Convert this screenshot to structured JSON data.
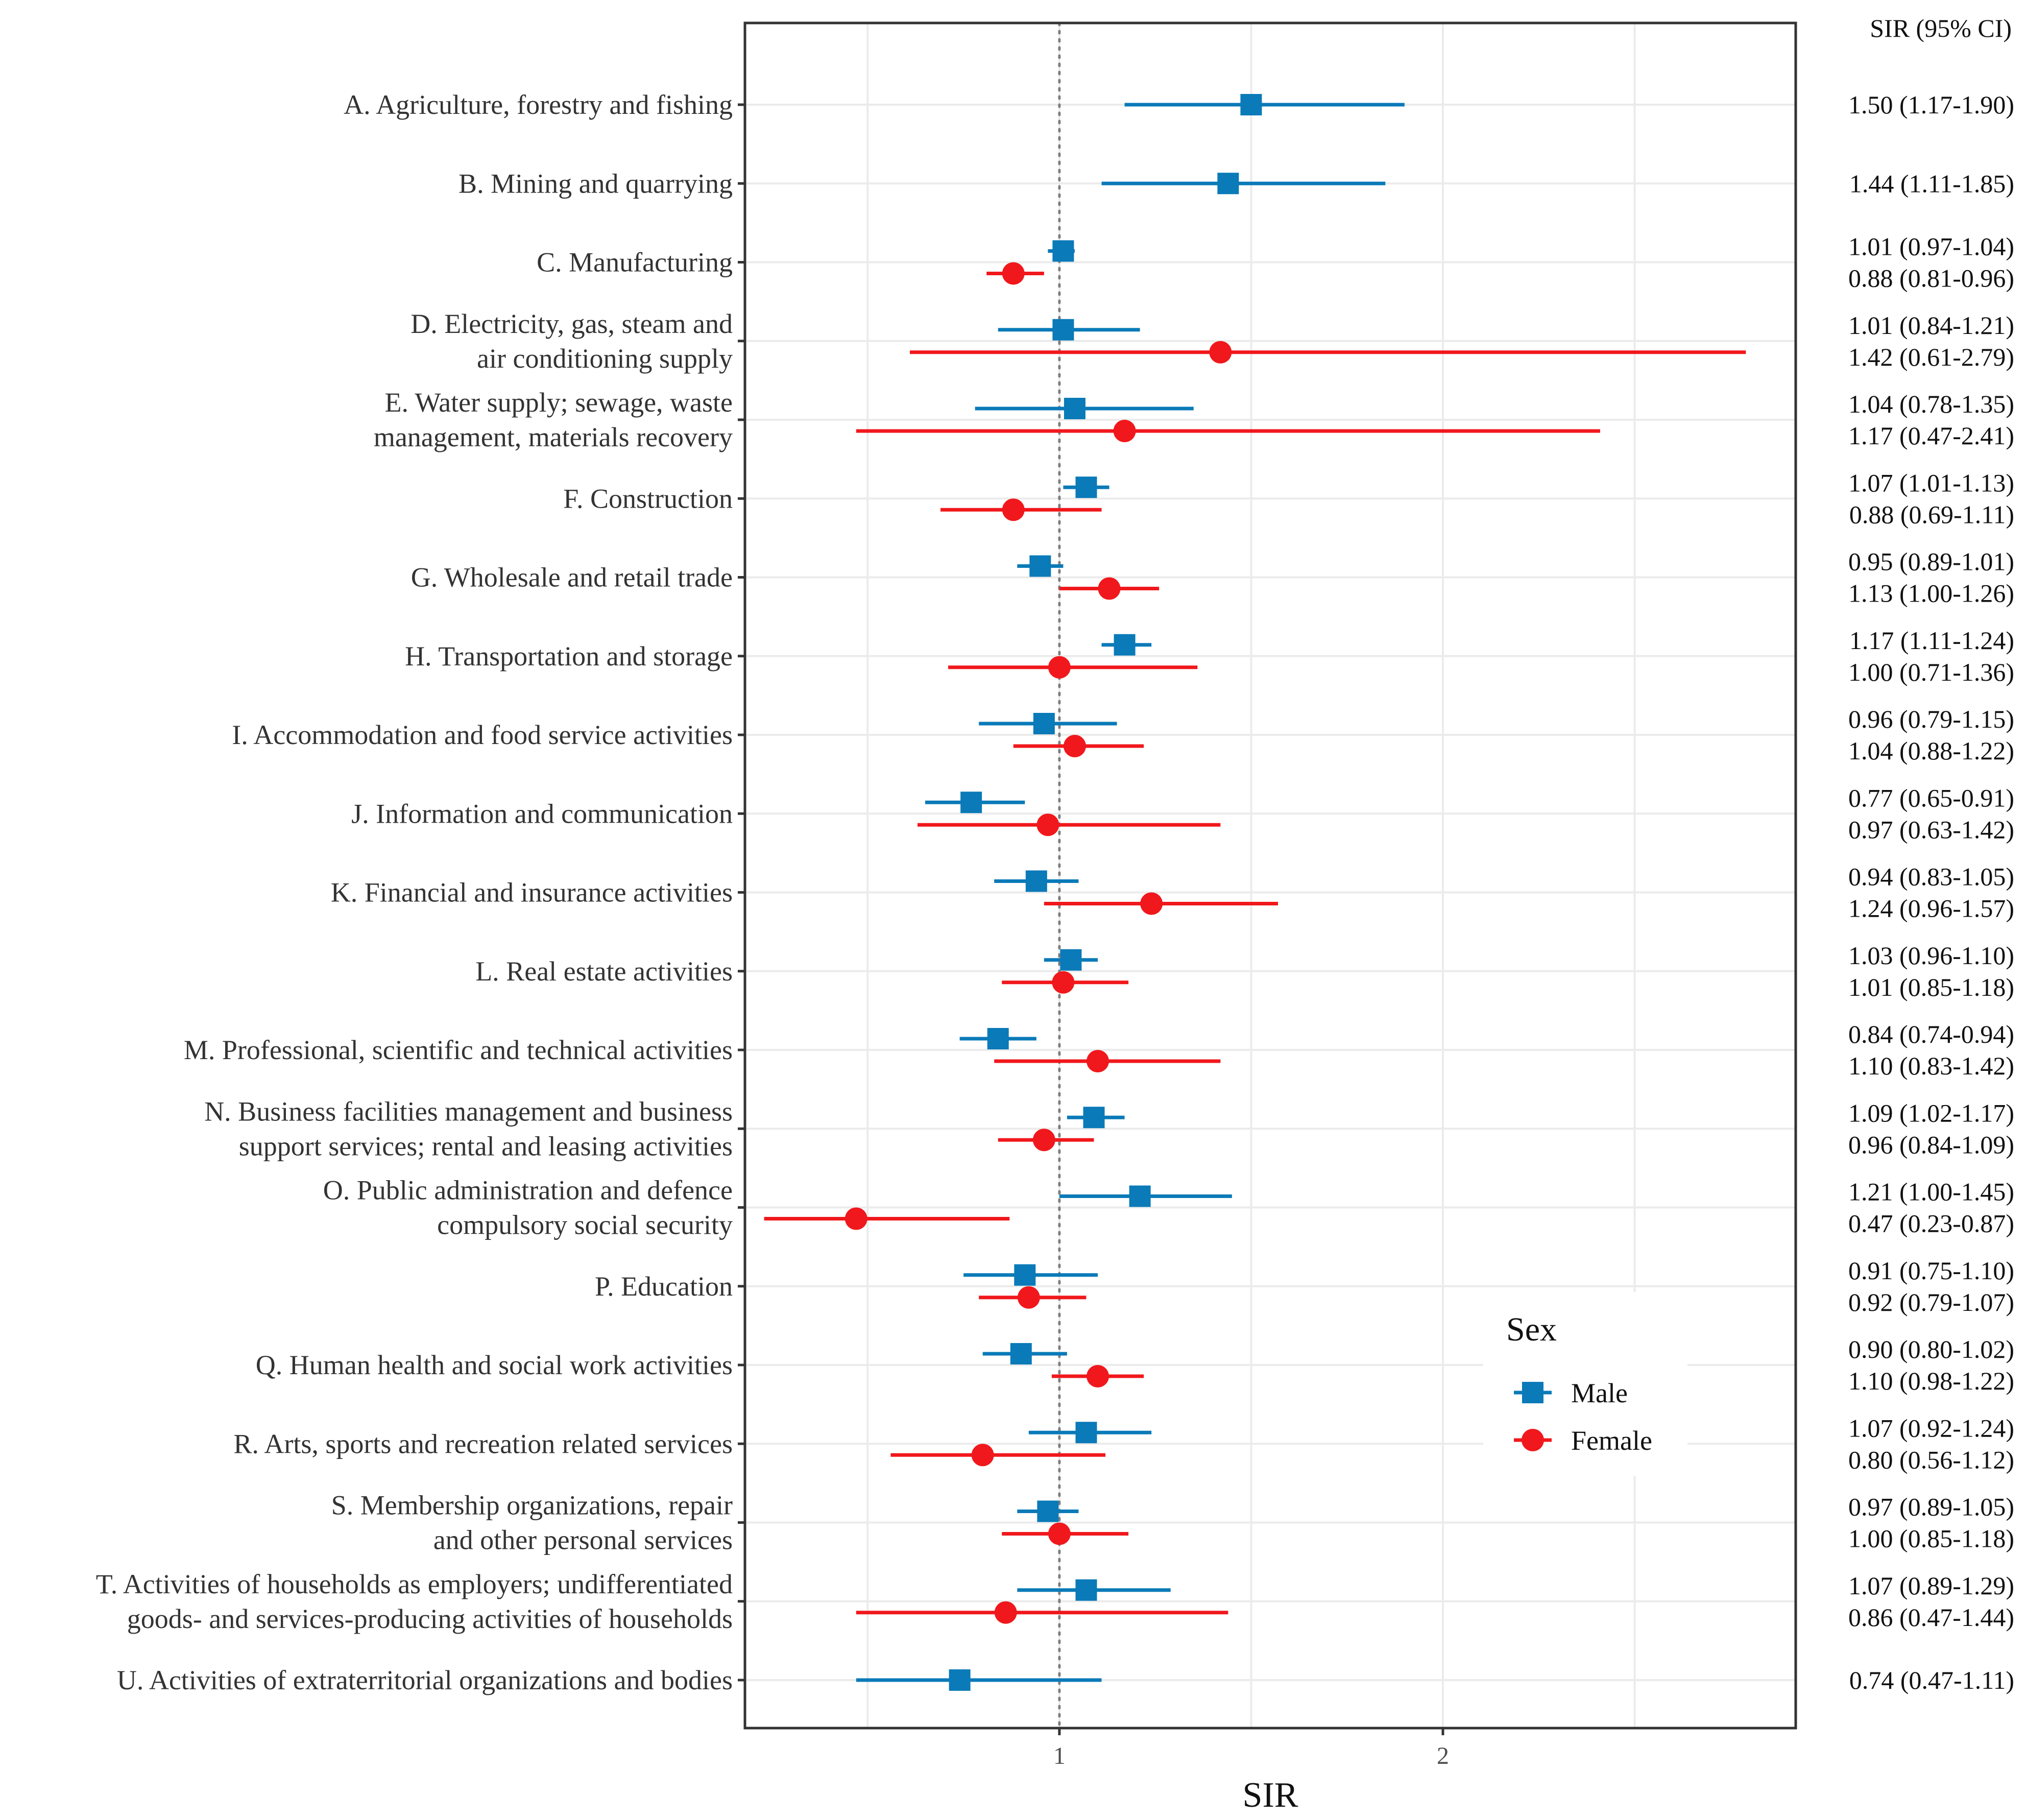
{
  "chart_data": {
    "type": "forest",
    "xlabel": "SIR",
    "value_column_header": "SIR (95% CI)",
    "xlim": [
      0.18,
      2.92
    ],
    "xticks": [
      1,
      2
    ],
    "minor_gridlines": [
      0.5,
      1.5,
      2.5
    ],
    "reference_line": 1,
    "legend": {
      "title": "Sex",
      "position": "right",
      "entries": [
        {
          "name": "Male",
          "color": "#0a7ab8",
          "shape": "square"
        },
        {
          "name": "Female",
          "color": "#f0181c",
          "shape": "circle"
        }
      ]
    },
    "series_colors": {
      "Male": "#0a7ab8",
      "Female": "#f0181c"
    },
    "categories": [
      {
        "label": [
          "A. Agriculture, forestry and fishing"
        ],
        "male": {
          "sir": 1.5,
          "lo": 1.17,
          "hi": 1.9,
          "text": "1.50 (1.17-1.90)"
        },
        "female": null
      },
      {
        "label": [
          "B. Mining and quarrying"
        ],
        "male": {
          "sir": 1.44,
          "lo": 1.11,
          "hi": 1.85,
          "text": "1.44 (1.11-1.85)"
        },
        "female": null
      },
      {
        "label": [
          "C. Manufacturing"
        ],
        "male": {
          "sir": 1.01,
          "lo": 0.97,
          "hi": 1.04,
          "text": "1.01 (0.97-1.04)"
        },
        "female": {
          "sir": 0.88,
          "lo": 0.81,
          "hi": 0.96,
          "text": "0.88 (0.81-0.96)"
        }
      },
      {
        "label": [
          "D. Electricity, gas, steam and",
          "air conditioning supply"
        ],
        "male": {
          "sir": 1.01,
          "lo": 0.84,
          "hi": 1.21,
          "text": "1.01 (0.84-1.21)"
        },
        "female": {
          "sir": 1.42,
          "lo": 0.61,
          "hi": 2.79,
          "text": "1.42 (0.61-2.79)"
        }
      },
      {
        "label": [
          "E. Water supply; sewage, waste",
          "management, materials recovery"
        ],
        "male": {
          "sir": 1.04,
          "lo": 0.78,
          "hi": 1.35,
          "text": "1.04 (0.78-1.35)"
        },
        "female": {
          "sir": 1.17,
          "lo": 0.47,
          "hi": 2.41,
          "text": "1.17 (0.47-2.41)"
        }
      },
      {
        "label": [
          "F. Construction"
        ],
        "male": {
          "sir": 1.07,
          "lo": 1.01,
          "hi": 1.13,
          "text": "1.07 (1.01-1.13)"
        },
        "female": {
          "sir": 0.88,
          "lo": 0.69,
          "hi": 1.11,
          "text": "0.88 (0.69-1.11)"
        }
      },
      {
        "label": [
          "G. Wholesale and retail trade"
        ],
        "male": {
          "sir": 0.95,
          "lo": 0.89,
          "hi": 1.01,
          "text": "0.95 (0.89-1.01)"
        },
        "female": {
          "sir": 1.13,
          "lo": 1.0,
          "hi": 1.26,
          "text": "1.13 (1.00-1.26)"
        }
      },
      {
        "label": [
          "H. Transportation and storage"
        ],
        "male": {
          "sir": 1.17,
          "lo": 1.11,
          "hi": 1.24,
          "text": "1.17 (1.11-1.24)"
        },
        "female": {
          "sir": 1.0,
          "lo": 0.71,
          "hi": 1.36,
          "text": "1.00 (0.71-1.36)"
        }
      },
      {
        "label": [
          "I. Accommodation and food service activities"
        ],
        "male": {
          "sir": 0.96,
          "lo": 0.79,
          "hi": 1.15,
          "text": "0.96 (0.79-1.15)"
        },
        "female": {
          "sir": 1.04,
          "lo": 0.88,
          "hi": 1.22,
          "text": "1.04 (0.88-1.22)"
        }
      },
      {
        "label": [
          "J. Information and communication"
        ],
        "male": {
          "sir": 0.77,
          "lo": 0.65,
          "hi": 0.91,
          "text": "0.77 (0.65-0.91)"
        },
        "female": {
          "sir": 0.97,
          "lo": 0.63,
          "hi": 1.42,
          "text": "0.97 (0.63-1.42)"
        }
      },
      {
        "label": [
          "K. Financial and insurance activities"
        ],
        "male": {
          "sir": 0.94,
          "lo": 0.83,
          "hi": 1.05,
          "text": "0.94 (0.83-1.05)"
        },
        "female": {
          "sir": 1.24,
          "lo": 0.96,
          "hi": 1.57,
          "text": "1.24 (0.96-1.57)"
        }
      },
      {
        "label": [
          "L. Real estate activities"
        ],
        "male": {
          "sir": 1.03,
          "lo": 0.96,
          "hi": 1.1,
          "text": "1.03 (0.96-1.10)"
        },
        "female": {
          "sir": 1.01,
          "lo": 0.85,
          "hi": 1.18,
          "text": "1.01 (0.85-1.18)"
        }
      },
      {
        "label": [
          "M. Professional, scientific and technical activities"
        ],
        "male": {
          "sir": 0.84,
          "lo": 0.74,
          "hi": 0.94,
          "text": "0.84 (0.74-0.94)"
        },
        "female": {
          "sir": 1.1,
          "lo": 0.83,
          "hi": 1.42,
          "text": "1.10 (0.83-1.42)"
        }
      },
      {
        "label": [
          "N. Business facilities management and business",
          "support services; rental and leasing activities"
        ],
        "male": {
          "sir": 1.09,
          "lo": 1.02,
          "hi": 1.17,
          "text": "1.09 (1.02-1.17)"
        },
        "female": {
          "sir": 0.96,
          "lo": 0.84,
          "hi": 1.09,
          "text": "0.96 (0.84-1.09)"
        }
      },
      {
        "label": [
          "O. Public administration and defence",
          "compulsory social security"
        ],
        "male": {
          "sir": 1.21,
          "lo": 1.0,
          "hi": 1.45,
          "text": "1.21 (1.00-1.45)"
        },
        "female": {
          "sir": 0.47,
          "lo": 0.23,
          "hi": 0.87,
          "text": "0.47 (0.23-0.87)"
        }
      },
      {
        "label": [
          "P. Education"
        ],
        "male": {
          "sir": 0.91,
          "lo": 0.75,
          "hi": 1.1,
          "text": "0.91 (0.75-1.10)"
        },
        "female": {
          "sir": 0.92,
          "lo": 0.79,
          "hi": 1.07,
          "text": "0.92 (0.79-1.07)"
        }
      },
      {
        "label": [
          "Q. Human health and social work activities"
        ],
        "male": {
          "sir": 0.9,
          "lo": 0.8,
          "hi": 1.02,
          "text": "0.90 (0.80-1.02)"
        },
        "female": {
          "sir": 1.1,
          "lo": 0.98,
          "hi": 1.22,
          "text": "1.10 (0.98-1.22)"
        }
      },
      {
        "label": [
          "R. Arts, sports and recreation related services"
        ],
        "male": {
          "sir": 1.07,
          "lo": 0.92,
          "hi": 1.24,
          "text": "1.07 (0.92-1.24)"
        },
        "female": {
          "sir": 0.8,
          "lo": 0.56,
          "hi": 1.12,
          "text": "0.80 (0.56-1.12)"
        }
      },
      {
        "label": [
          "S. Membership organizations, repair",
          "and other personal services"
        ],
        "male": {
          "sir": 0.97,
          "lo": 0.89,
          "hi": 1.05,
          "text": "0.97 (0.89-1.05)"
        },
        "female": {
          "sir": 1.0,
          "lo": 0.85,
          "hi": 1.18,
          "text": "1.00 (0.85-1.18)"
        }
      },
      {
        "label": [
          "T. Activities of households as employers; undifferentiated",
          "goods- and services-producing activities of households"
        ],
        "male": {
          "sir": 1.07,
          "lo": 0.89,
          "hi": 1.29,
          "text": "1.07 (0.89-1.29)"
        },
        "female": {
          "sir": 0.86,
          "lo": 0.47,
          "hi": 1.44,
          "text": "0.86 (0.47-1.44)"
        }
      },
      {
        "label": [
          "U. Activities of extraterritorial organizations and bodies"
        ],
        "male": {
          "sir": 0.74,
          "lo": 0.47,
          "hi": 1.11,
          "text": "0.74 (0.47-1.11)"
        },
        "female": null
      }
    ]
  }
}
